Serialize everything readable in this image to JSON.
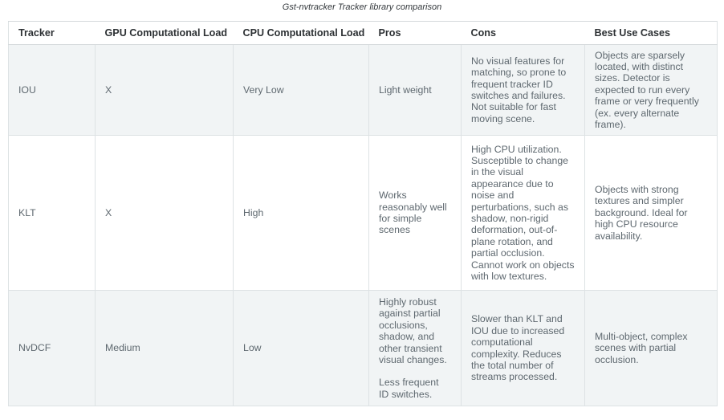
{
  "title": "Gst-nvtracker Tracker library comparison",
  "table": {
    "columns": [
      "Tracker",
      "GPU Computational Load",
      "CPU Computational Load",
      "Pros",
      "Cons",
      "Best Use Cases"
    ],
    "rows": [
      {
        "tracker": "IOU",
        "gpu_load": "X",
        "cpu_load": "Very Low",
        "pros": [
          "Light weight"
        ],
        "cons": "No visual features for matching, so prone to frequent tracker ID switches and failures. Not suitable for fast moving scene.",
        "best_use_cases": "Objects are sparsely located, with distinct sizes. Detector is expected to run every frame or very frequently (ex. every alternate frame)."
      },
      {
        "tracker": "KLT",
        "gpu_load": "X",
        "cpu_load": "High",
        "pros": [
          "Works reasonably well for simple scenes"
        ],
        "cons": "High CPU utilization. Susceptible to change in the visual appearance due to noise and perturbations, such as shadow, non-rigid deformation, out-of-plane rotation, and partial occlusion. Cannot work on objects with low textures.",
        "best_use_cases": "Objects with strong textures and simpler background. Ideal for high CPU resource availability."
      },
      {
        "tracker": "NvDCF",
        "gpu_load": "Medium",
        "cpu_load": "Low",
        "pros": [
          "Highly robust against partial occlusions, shadow, and other transient visual changes.",
          "Less frequent ID switches."
        ],
        "cons": "Slower than KLT and IOU due to increased computational complexity. Reduces the total number of streams processed.",
        "best_use_cases": "Multi-object, complex scenes with partial occlusion."
      }
    ]
  },
  "colors": {
    "row_shaded_bg": "#f1f4f5",
    "row_plain_bg": "#ffffff",
    "border": "#dde2e4",
    "header_border": "#d4d9db",
    "header_text": "#2d3134",
    "body_text": "#5e686f",
    "title_text": "#33383c"
  }
}
